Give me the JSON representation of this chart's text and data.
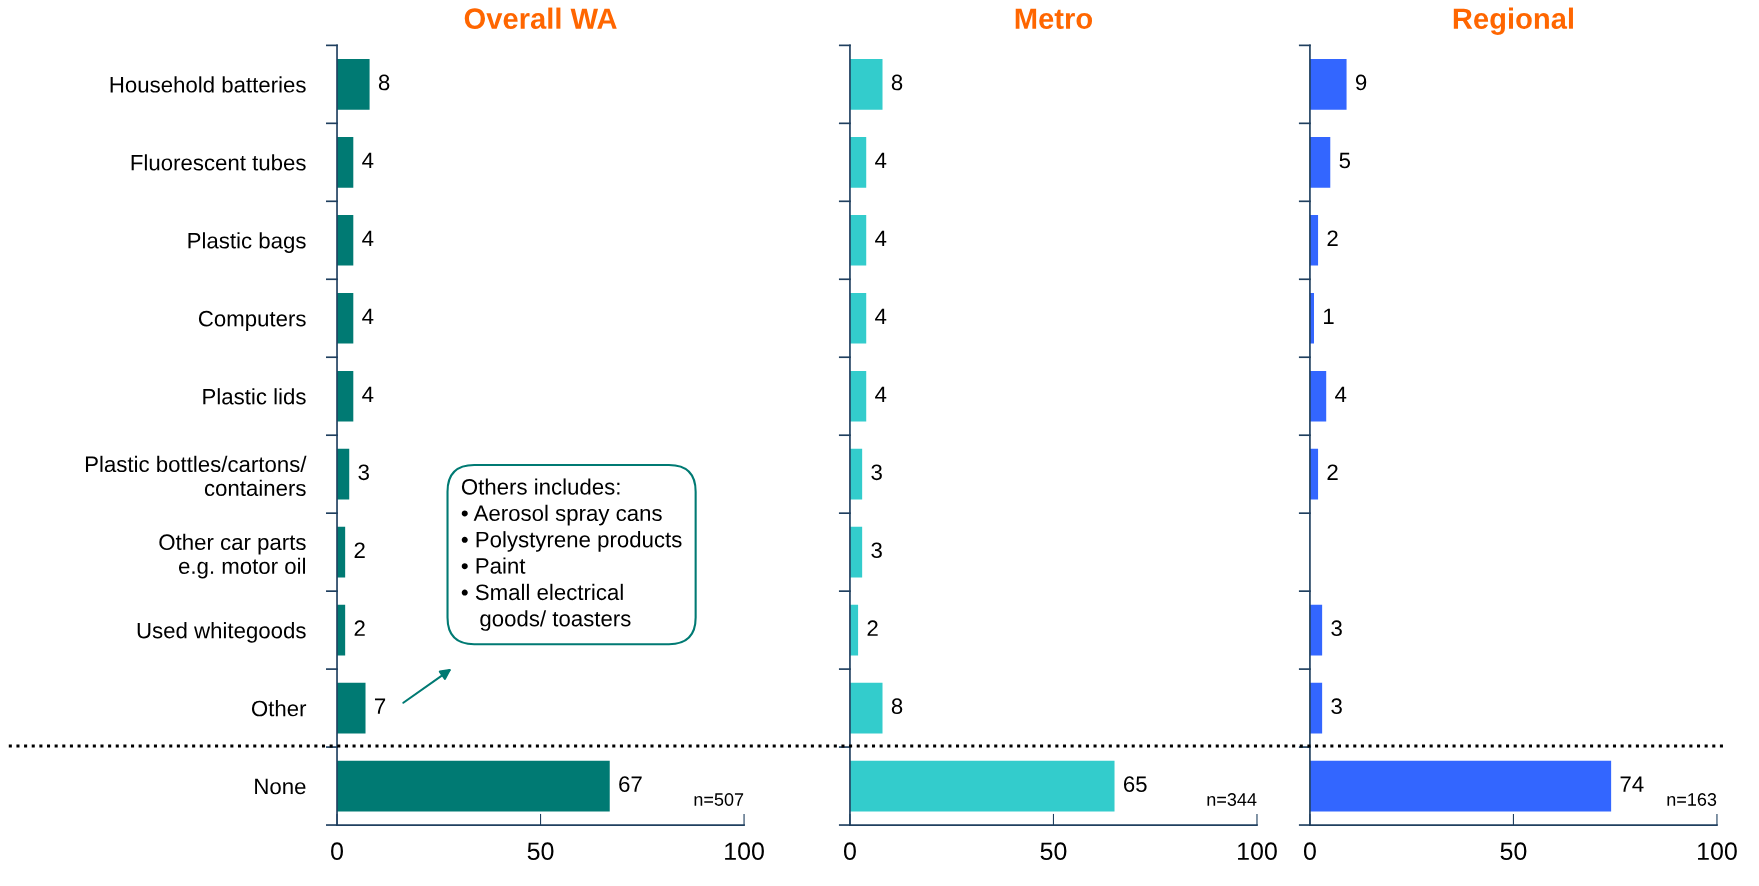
{
  "chart_data": [
    {
      "type": "bar",
      "orientation": "horizontal",
      "title": "Overall WA",
      "categories": [
        "Household batteries",
        "Fluorescent tubes",
        "Plastic bags",
        "Computers",
        "Plastic lids",
        "Plastic bottles/cartons/\ncontainers",
        "Other car parts\ne.g. motor oil",
        "Used whitegoods",
        "Other",
        "None"
      ],
      "values": [
        8,
        4,
        4,
        4,
        4,
        3,
        2,
        2,
        7,
        67
      ],
      "color": "#007a73",
      "xlim": [
        0,
        100
      ],
      "xticks": [
        0,
        50,
        100
      ],
      "data_labels": true,
      "annotations": [
        "n=507",
        "Others includes:\n• Aerosol spray cans\n• Polystyrene products\n• Paint\n• Small electrical\n   goods/ toasters"
      ]
    },
    {
      "type": "bar",
      "orientation": "horizontal",
      "title": "Metro",
      "categories": [
        null,
        null,
        null,
        null,
        null,
        null,
        null,
        null,
        null,
        null
      ],
      "values": [
        8,
        4,
        4,
        4,
        4,
        3,
        3,
        2,
        8,
        65
      ],
      "color": "#33cccc",
      "xlim": [
        0,
        100
      ],
      "xticks": [
        0,
        50,
        100
      ],
      "data_labels": true,
      "annotations": [
        "n=344"
      ]
    },
    {
      "type": "bar",
      "orientation": "horizontal",
      "title": "Regional",
      "categories": [
        null,
        null,
        null,
        null,
        null,
        null,
        null,
        null,
        null,
        null
      ],
      "values": [
        9,
        5,
        2,
        1,
        4,
        2,
        null,
        3,
        3,
        74
      ],
      "color": "#3366ff",
      "xlim": [
        0,
        100
      ],
      "xticks": [
        0,
        50,
        100
      ],
      "data_labels": true,
      "annotations": [
        "n=163"
      ]
    }
  ]
}
